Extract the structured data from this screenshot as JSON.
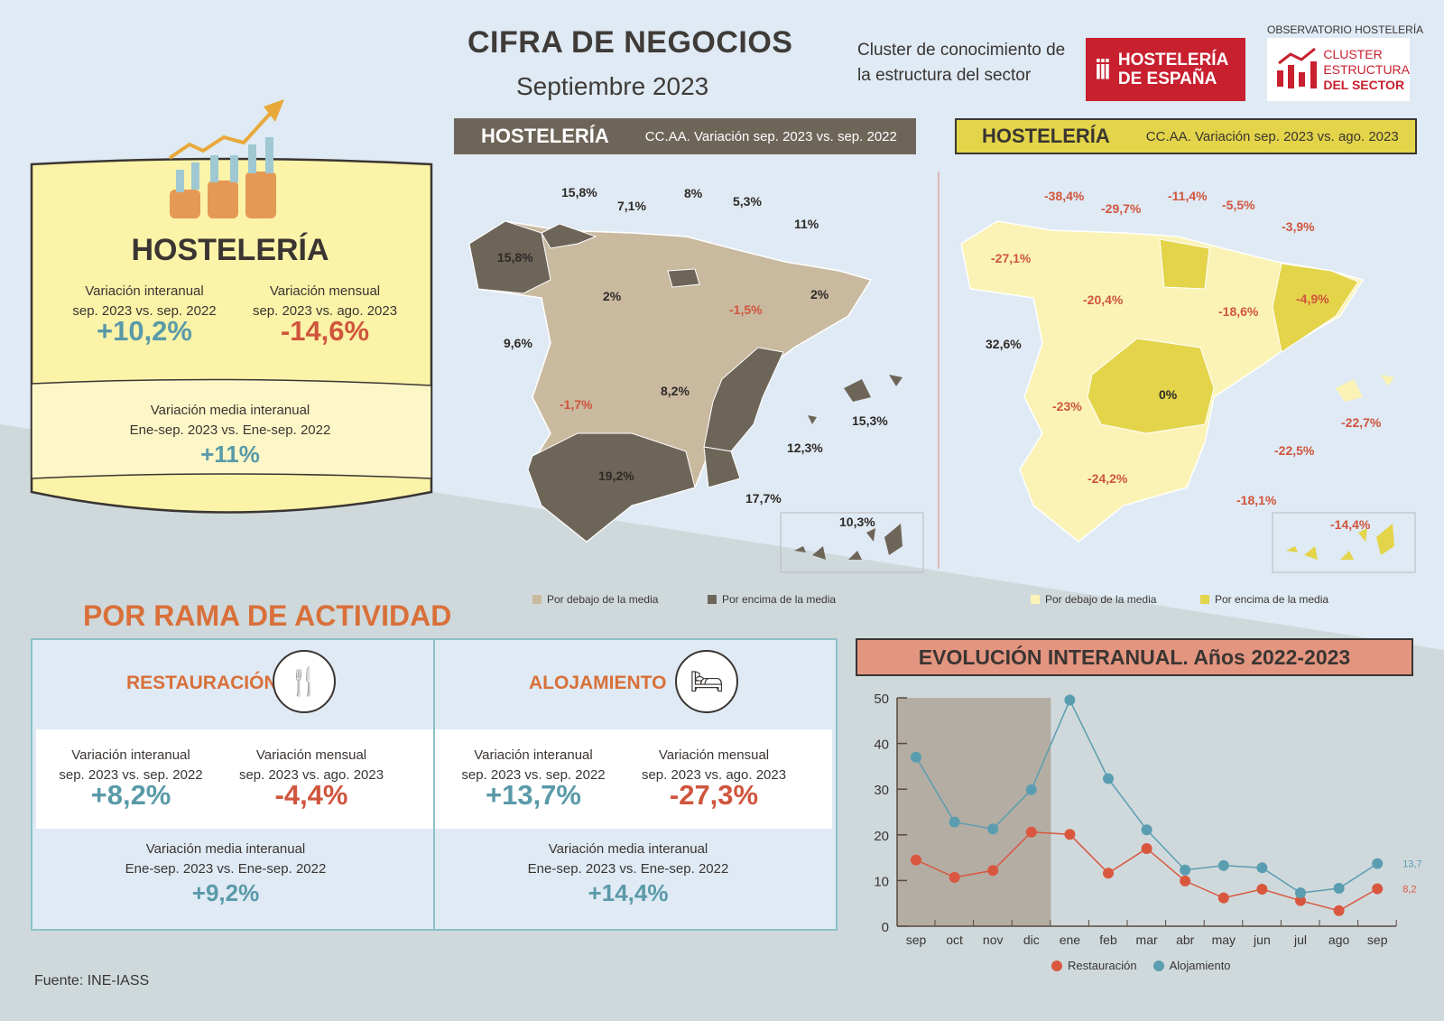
{
  "header": {
    "title": "CIFRA DE NEGOCIOS",
    "subtitle": "Septiembre 2023",
    "tagline_1": "Cluster de conocimiento de",
    "tagline_2": "la estructura del sector",
    "logo_hosteleria_1": "HOSTELERÍA",
    "logo_hosteleria_2": "DE ESPAÑA",
    "observatorio": "OBSERVATORIO HOSTELERÍA",
    "cluster_1": "CLUSTER",
    "cluster_2": "ESTRUCTURA",
    "cluster_3": "DEL SECTOR"
  },
  "summary": {
    "title": "HOSTELERÍA",
    "interanual_label_1": "Variación interanual",
    "interanual_label_2": "sep. 2023 vs. sep. 2022",
    "interanual_value": "+10,2%",
    "mensual_label_1": "Variación mensual",
    "mensual_label_2": "sep. 2023 vs. ago. 2023",
    "mensual_value": "-14,6%",
    "media_label_1": "Variación media interanual",
    "media_label_2": "Ene-sep. 2023 vs. Ene-sep. 2022",
    "media_value": "+11%"
  },
  "map_yoy": {
    "title": "HOSTELERÍA",
    "subtitle": "CC.AA. Variación sep. 2023 vs. sep. 2022",
    "colors": {
      "below": "#c9b99f",
      "above": "#6e6559"
    },
    "labels": [
      "15,8%",
      "7,1%",
      "8%",
      "5,3%",
      "11%",
      "15,8%",
      "2%",
      "-1,5%",
      "2%",
      "9,6%",
      "8,2%",
      "-1,7%",
      "15,3%",
      "12,3%",
      "19,2%",
      "17,7%",
      "10,3%"
    ],
    "legend_below": "Por debajo de la media",
    "legend_above": "Por encima de la media"
  },
  "map_mom": {
    "title": "HOSTELERÍA",
    "subtitle": "CC.AA. Variación sep. 2023 vs. ago. 2023",
    "colors": {
      "below": "#faf3b5",
      "above": "#e3d44a"
    },
    "labels": [
      "-38,4%",
      "-29,7%",
      "-11,4%",
      "-5,5%",
      "-3,9%",
      "-27,1%",
      "-20,4%",
      "-18,6%",
      "-4,9%",
      "32,6%",
      "0%",
      "-23%",
      "-22,7%",
      "-22,5%",
      "-24,2%",
      "-18,1%",
      "-14,4%"
    ],
    "legend_below": "Por debajo de la media",
    "legend_above": "Por encima de la media"
  },
  "ramas": {
    "title": "POR RAMA DE ACTIVIDAD",
    "items": [
      {
        "name": "RESTAURACIÓN",
        "icon": "cutlery-coffee-icon",
        "interanual_label_1": "Variación interanual",
        "interanual_label_2": "sep. 2023 vs. sep. 2022",
        "interanual_value": "+8,2%",
        "mensual_label_1": "Variación mensual",
        "mensual_label_2": "sep. 2023 vs. ago. 2023",
        "mensual_value": "-4,4%",
        "media_label_1": "Variación media interanual",
        "media_label_2": "Ene-sep. 2023 vs. Ene-sep. 2022",
        "media_value": "+9,2%"
      },
      {
        "name": "ALOJAMIENTO",
        "icon": "hotel-bed-icon",
        "interanual_label_1": "Variación interanual",
        "interanual_label_2": "sep. 2023 vs. sep. 2022",
        "interanual_value": "+13,7%",
        "mensual_label_1": "Variación mensual",
        "mensual_label_2": "sep. 2023 vs. ago. 2023",
        "mensual_value": "-27,3%",
        "media_label_1": "Variación media interanual",
        "media_label_2": "Ene-sep. 2023 vs. Ene-sep. 2022",
        "media_value": "+14,4%"
      }
    ]
  },
  "chart_data": {
    "type": "line",
    "title": "EVOLUCIÓN INTERANUAL. Años 2022-2023",
    "categories": [
      "sep",
      "oct",
      "nov",
      "dic",
      "ene",
      "feb",
      "mar",
      "abr",
      "may",
      "jun",
      "jul",
      "ago",
      "sep"
    ],
    "ylim": [
      0,
      50
    ],
    "yticks": [
      "0",
      "10",
      "20",
      "30",
      "40",
      "50"
    ],
    "grid": false,
    "legend": "bottom",
    "shaded_range": [
      "sep",
      "dic"
    ],
    "series": [
      {
        "name": "Restauración",
        "color": "#d9573f",
        "values": [
          14.5,
          10.7,
          12.2,
          20.6,
          20.1,
          11.6,
          17.0,
          9.9,
          6.2,
          8.1,
          5.6,
          3.4,
          8.2
        ],
        "end_label": "8,2"
      },
      {
        "name": "Alojamiento",
        "color": "#5b9db0",
        "values": [
          37.0,
          22.8,
          21.3,
          29.9,
          49.5,
          32.3,
          21.1,
          12.3,
          13.3,
          12.8,
          7.3,
          8.3,
          13.7
        ],
        "end_label": "13,7"
      }
    ]
  },
  "footer": {
    "source": "Fuente: INE-IASS"
  }
}
